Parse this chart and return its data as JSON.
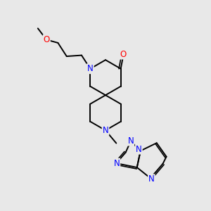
{
  "background_color": "#e8e8e8",
  "bond_color": "#000000",
  "nitrogen_color": "#0000ff",
  "oxygen_color": "#ff0000",
  "font_size_atom": 8.5,
  "fig_width": 3.0,
  "fig_height": 3.0,
  "dpi": 100,
  "xlim": [
    0,
    10
  ],
  "ylim": [
    0,
    10
  ]
}
